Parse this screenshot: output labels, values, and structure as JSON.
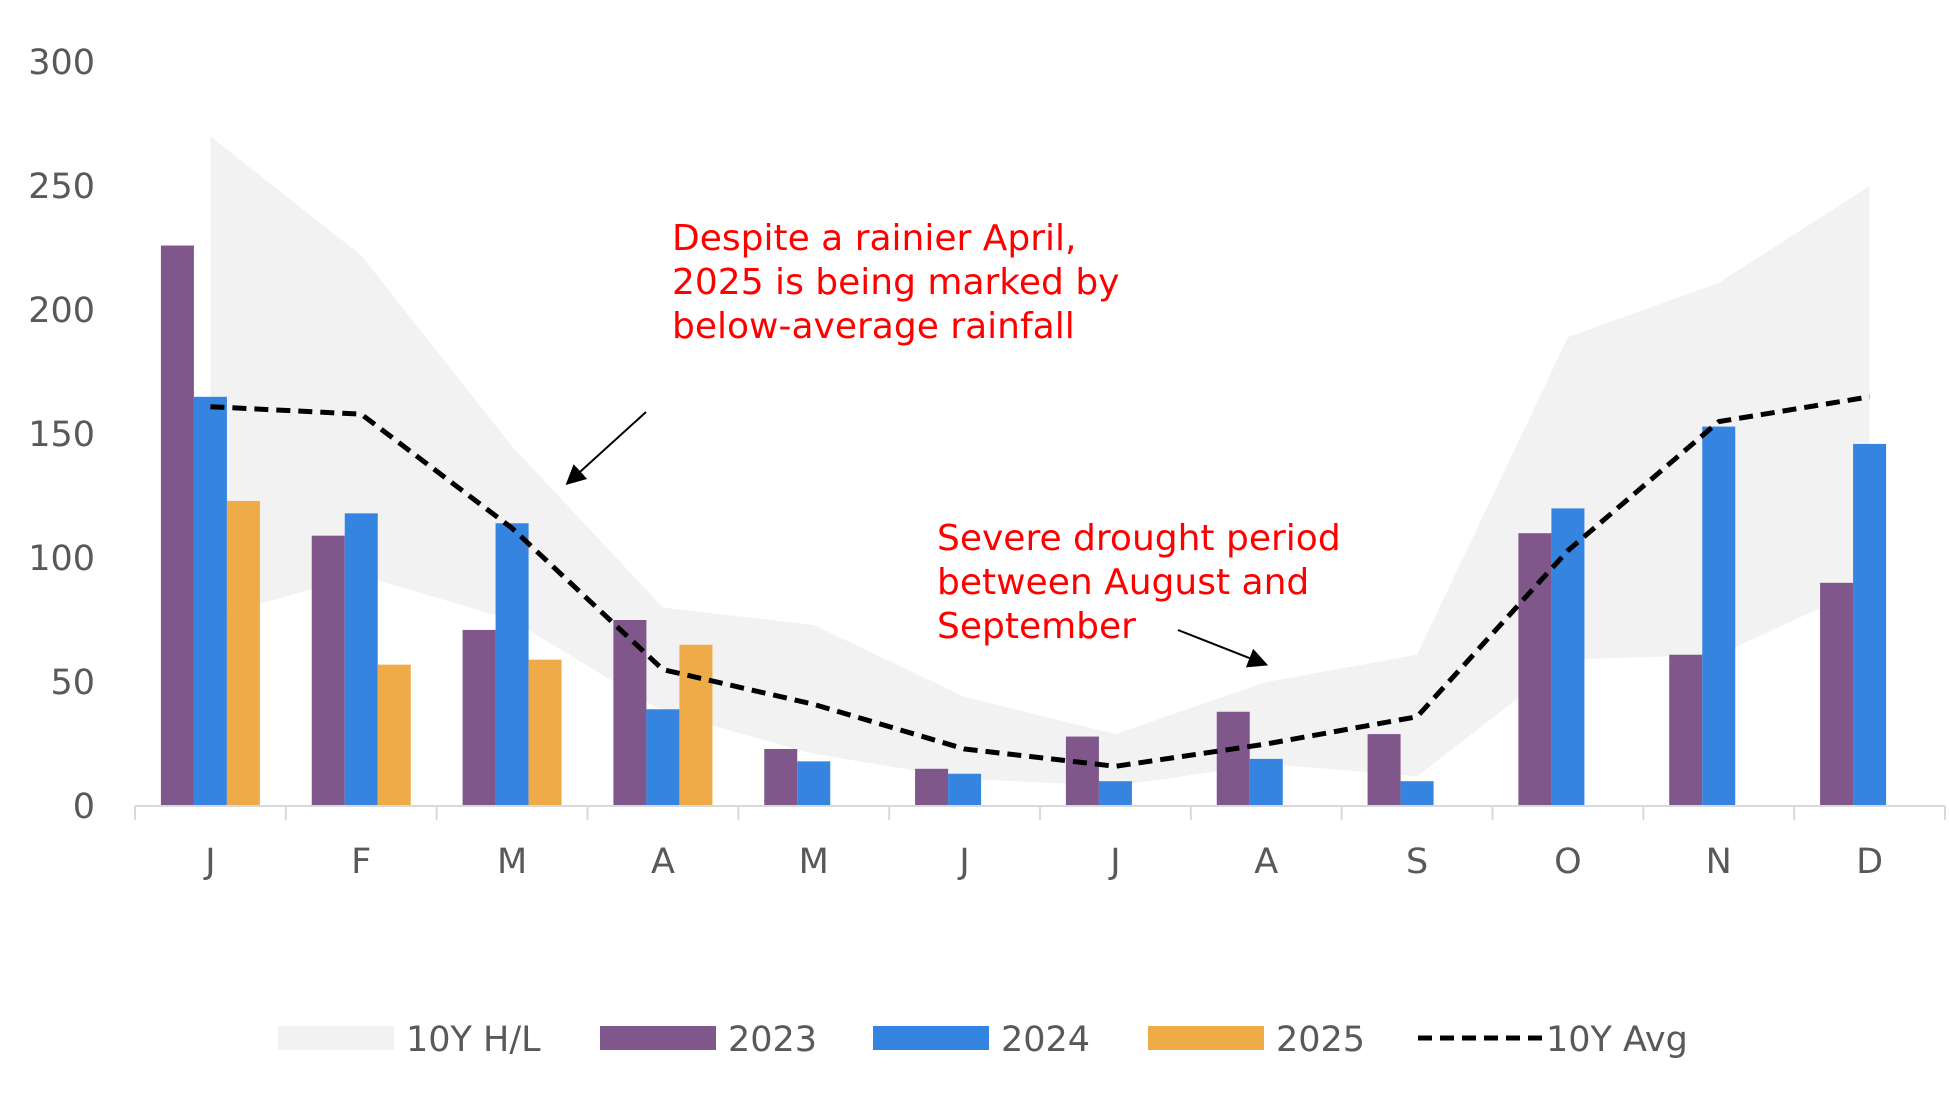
{
  "chart_data": {
    "type": "bar",
    "categories": [
      "J",
      "F",
      "M",
      "A",
      "M",
      "J",
      "J",
      "A",
      "S",
      "O",
      "N",
      "D"
    ],
    "ylim": [
      0,
      300
    ],
    "yticks": [
      0,
      50,
      100,
      150,
      200,
      250,
      300
    ],
    "ytick_labels": [
      "0",
      "50",
      "100",
      "150",
      "200",
      "250",
      "300"
    ],
    "grid": false,
    "legend_position": "bottom",
    "band": {
      "name": "10Y H/L",
      "color": "#f2f2f2",
      "high": [
        270,
        222,
        145,
        80,
        73,
        44,
        29,
        50,
        61,
        189,
        211,
        250
      ],
      "low": [
        76,
        93,
        75,
        38,
        21,
        11,
        8,
        17,
        12,
        59,
        61,
        89
      ]
    },
    "series": [
      {
        "name": "2023",
        "color": "#7f578b",
        "values": [
          226,
          109,
          71,
          75,
          23,
          15,
          28,
          38,
          29,
          110,
          61,
          90
        ]
      },
      {
        "name": "2024",
        "color": "#3584e0",
        "values": [
          165,
          118,
          114,
          39,
          18,
          13,
          10,
          19,
          10,
          120,
          153,
          146
        ]
      },
      {
        "name": "2025",
        "color": "#efab47",
        "values": [
          123,
          57,
          59,
          65,
          null,
          null,
          null,
          null,
          null,
          null,
          null,
          null
        ]
      }
    ],
    "line": {
      "name": "10Y Avg",
      "color": "#000000",
      "values": [
        161,
        158,
        112,
        55,
        41,
        23,
        16,
        25,
        36,
        103,
        155,
        165
      ]
    },
    "annotations": [
      {
        "text": [
          "Despite a rainier April,",
          "2025 is being marked by",
          "below-average rainfall"
        ],
        "color": "#ff0000",
        "points_to_month": "M",
        "points_to_value": 130
      },
      {
        "text": [
          "Severe drought period",
          "between August and",
          "September"
        ],
        "color": "#ff0000",
        "points_to_month": "A",
        "points_to_value": 57
      }
    ]
  }
}
